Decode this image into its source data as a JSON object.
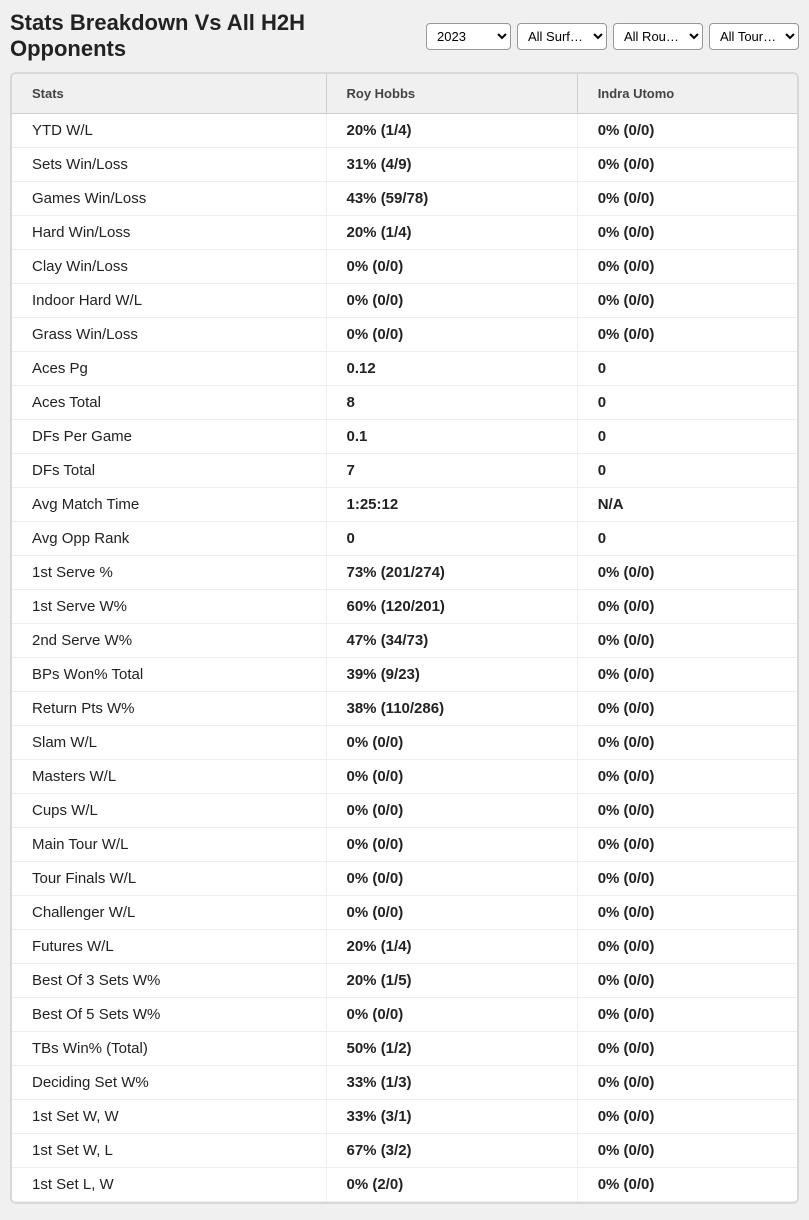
{
  "header": {
    "title": "Stats Breakdown Vs All H2H Opponents",
    "filters": {
      "year": "2023",
      "surface": "All Surf…",
      "round": "All Rou…",
      "tour": "All Tour…"
    }
  },
  "table": {
    "columns": [
      "Stats",
      "Roy Hobbs",
      "Indra Utomo"
    ],
    "rows": [
      [
        "YTD W/L",
        "20% (1/4)",
        "0% (0/0)"
      ],
      [
        "Sets Win/Loss",
        "31% (4/9)",
        "0% (0/0)"
      ],
      [
        "Games Win/Loss",
        "43% (59/78)",
        "0% (0/0)"
      ],
      [
        "Hard Win/Loss",
        "20% (1/4)",
        "0% (0/0)"
      ],
      [
        "Clay Win/Loss",
        "0% (0/0)",
        "0% (0/0)"
      ],
      [
        "Indoor Hard W/L",
        "0% (0/0)",
        "0% (0/0)"
      ],
      [
        "Grass Win/Loss",
        "0% (0/0)",
        "0% (0/0)"
      ],
      [
        "Aces Pg",
        "0.12",
        "0"
      ],
      [
        "Aces Total",
        "8",
        "0"
      ],
      [
        "DFs Per Game",
        "0.1",
        "0"
      ],
      [
        "DFs Total",
        "7",
        "0"
      ],
      [
        "Avg Match Time",
        "1:25:12",
        "N/A"
      ],
      [
        "Avg Opp Rank",
        "0",
        "0"
      ],
      [
        "1st Serve %",
        "73% (201/274)",
        "0% (0/0)"
      ],
      [
        "1st Serve W%",
        "60% (120/201)",
        "0% (0/0)"
      ],
      [
        "2nd Serve W%",
        "47% (34/73)",
        "0% (0/0)"
      ],
      [
        "BPs Won% Total",
        "39% (9/23)",
        "0% (0/0)"
      ],
      [
        "Return Pts W%",
        "38% (110/286)",
        "0% (0/0)"
      ],
      [
        "Slam W/L",
        "0% (0/0)",
        "0% (0/0)"
      ],
      [
        "Masters W/L",
        "0% (0/0)",
        "0% (0/0)"
      ],
      [
        "Cups W/L",
        "0% (0/0)",
        "0% (0/0)"
      ],
      [
        "Main Tour W/L",
        "0% (0/0)",
        "0% (0/0)"
      ],
      [
        "Tour Finals W/L",
        "0% (0/0)",
        "0% (0/0)"
      ],
      [
        "Challenger W/L",
        "0% (0/0)",
        "0% (0/0)"
      ],
      [
        "Futures W/L",
        "20% (1/4)",
        "0% (0/0)"
      ],
      [
        "Best Of 3 Sets W%",
        "20% (1/5)",
        "0% (0/0)"
      ],
      [
        "Best Of 5 Sets W%",
        "0% (0/0)",
        "0% (0/0)"
      ],
      [
        "TBs Win% (Total)",
        "50% (1/2)",
        "0% (0/0)"
      ],
      [
        "Deciding Set W%",
        "33% (1/3)",
        "0% (0/0)"
      ],
      [
        "1st Set W, W",
        "33% (3/1)",
        "0% (0/0)"
      ],
      [
        "1st Set W, L",
        "67% (3/2)",
        "0% (0/0)"
      ],
      [
        "1st Set L, W",
        "0% (2/0)",
        "0% (0/0)"
      ]
    ]
  },
  "style": {
    "background_color": "#f0f0f0",
    "table_border_color": "#d8d8d8",
    "header_bg": "#f0f0f0",
    "header_text_color": "#444",
    "row_border_color": "#eeeeee",
    "text_color": "#222222",
    "title_fontsize": 22,
    "header_fontsize": 13,
    "cell_fontsize": 15
  }
}
